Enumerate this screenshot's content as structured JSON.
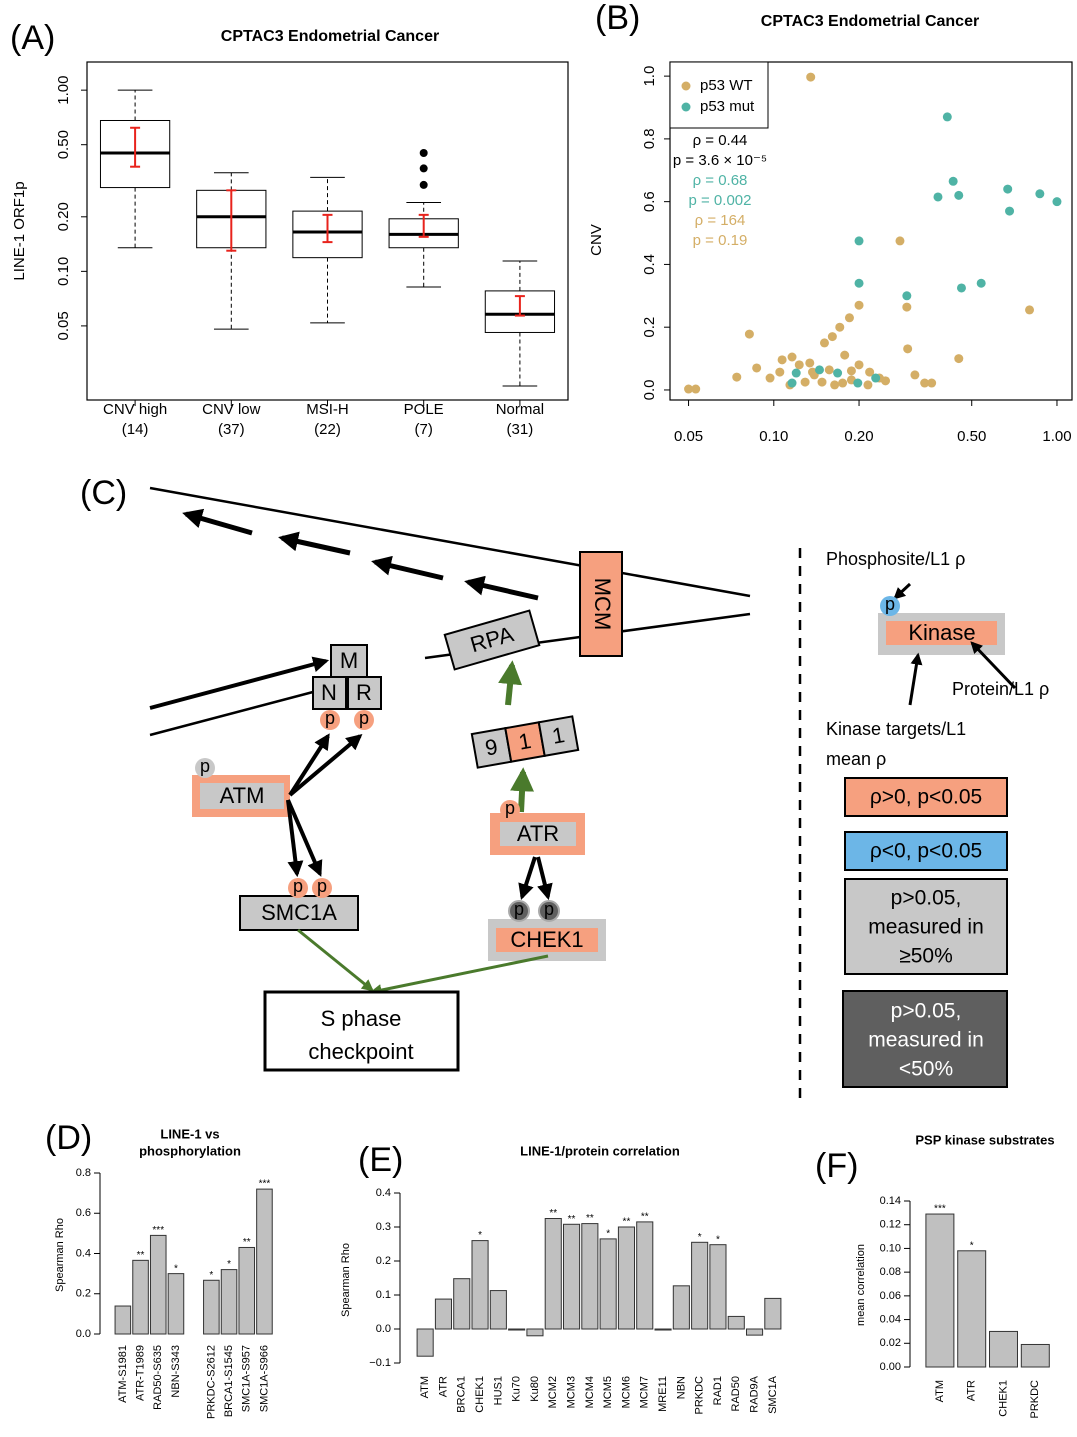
{
  "panel_labels": [
    "(A)",
    "(B)",
    "(C)",
    "(D)",
    "(E)",
    "(F)"
  ],
  "chart_data": [
    {
      "type": "box",
      "title": "CPTAC3 Endometrial Cancer",
      "y_label": "LINE-1 ORF1p",
      "categories": [
        "CNV high",
        "CNV low",
        "MSI-H",
        "POLE",
        "Normal"
      ],
      "counts": [
        "(14)",
        "(37)",
        "(22)",
        "(7)",
        "(31)"
      ],
      "whisker_low": [
        0.135,
        0.048,
        0.052,
        0.082,
        0.0233
      ],
      "q1": [
        0.29,
        0.135,
        0.119,
        0.135,
        0.046
      ],
      "median": [
        0.45,
        0.2,
        0.165,
        0.16,
        0.058
      ],
      "q3": [
        0.68,
        0.28,
        0.215,
        0.195,
        0.078
      ],
      "whisker_high": [
        1.0,
        0.35,
        0.33,
        0.24,
        0.114
      ],
      "outliers": [
        [],
        [],
        [],
        [
          0.3,
          0.37,
          0.45
        ],
        []
      ],
      "ci_low": [
        0.378,
        0.13,
        0.145,
        0.155,
        0.057
      ],
      "ci_high": [
        0.62,
        0.28,
        0.205,
        0.205,
        0.073
      ],
      "box_color": "#ffffff",
      "ci_color": "#e8231c",
      "ylog": true,
      "ylim": [
        0.0195,
        1.43
      ],
      "yticks": [
        0.05,
        {
          "value": 0.1,
          "label": "0.10"
        },
        {
          "value": 0.2,
          "label": "0.20"
        },
        {
          "value": 0.5,
          "label": "0.50"
        },
        {
          "value": 1,
          "label": "1.00"
        }
      ]
    },
    {
      "type": "scatter",
      "title": "CPTAC3 Endometrial Cancer",
      "y_label": "CNV",
      "xlog": true,
      "xlim": [
        0.043,
        1.13
      ],
      "ylim": [
        -0.032,
        1.045
      ],
      "xticks": [
        0.05,
        {
          "value": 0.1,
          "label": "0.10"
        },
        {
          "value": 0.2,
          "label": "0.20"
        },
        {
          "value": 0.5,
          "label": "0.50"
        },
        {
          "value": 1,
          "label": "1.00"
        }
      ],
      "yticks": [
        {
          "value": 0,
          "label": "0.0"
        },
        0.2,
        0.4,
        0.6,
        0.8,
        {
          "value": 1,
          "label": "1.0"
        }
      ],
      "legend": "top-left",
      "series": [
        {
          "name": "p53 WT",
          "color": "#d4ae66",
          "x": [
            0.135,
            0.279,
            0.295,
            0.8,
            0.45,
            0.2,
            0.185,
            0.171,
            0.161,
            0.151,
            0.134,
            0.082,
            0.074,
            0.05,
            0.053,
            0.097,
            0.087,
            0.107,
            0.123,
            0.139,
            0.157,
            0.178,
            0.188,
            0.218,
            0.236,
            0.2,
            0.297,
            0.315,
            0.341,
            0.361,
            0.148,
            0.129,
            0.114,
            0.175,
            0.215,
            0.164,
            0.188,
            0.105,
            0.116,
            0.137,
            0.248
          ],
          "values": [
            0.997,
            0.475,
            0.264,
            0.255,
            0.1,
            0.27,
            0.23,
            0.2,
            0.17,
            0.15,
            0.086,
            0.178,
            0.041,
            0.003,
            0.003,
            0.038,
            0.07,
            0.096,
            0.08,
            0.048,
            0.064,
            0.111,
            0.032,
            0.057,
            0.038,
            0.08,
            0.131,
            0.048,
            0.022,
            0.022,
            0.025,
            0.025,
            0.016,
            0.022,
            0.016,
            0.016,
            0.061,
            0.057,
            0.105,
            0.057,
            0.029
          ]
        },
        {
          "name": "p53 mut",
          "color": "#4fb3a5",
          "x": [
            0.41,
            0.43,
            0.38,
            0.45,
            0.67,
            0.87,
            0.68,
            1.0,
            0.2,
            0.54,
            0.46,
            0.2,
            0.295,
            0.145,
            0.12,
            0.116,
            0.168,
            0.198,
            0.229
          ],
          "values": [
            0.87,
            0.665,
            0.615,
            0.62,
            0.64,
            0.625,
            0.57,
            0.6,
            0.475,
            0.34,
            0.325,
            0.34,
            0.3,
            0.064,
            0.054,
            0.022,
            0.054,
            0.022,
            0.038
          ]
        }
      ],
      "annotations": [
        {
          "text": "ρ = 0.44",
          "color": "#000000"
        },
        {
          "text": "p = 3.6 × 10⁻⁵",
          "color": "#000000"
        },
        {
          "text": "ρ = 0.68",
          "color": "#4fb3a5"
        },
        {
          "text": "p = 0.002",
          "color": "#4fb3a5"
        },
        {
          "text": "ρ = 164",
          "color": "#d4ae66"
        },
        {
          "text": "p = 0.19",
          "color": "#d4ae66"
        }
      ]
    },
    {
      "type": "bar",
      "title": [
        "LINE-1 vs",
        "phosphorylation"
      ],
      "y_label": "Spearman Rho",
      "categories": [
        "ATM-S1981",
        "ATR-T1989",
        "RAD50-S635",
        "NBN-S343",
        "PRKDC-S2612",
        "BRCA1-S1545",
        "SMC1A-S957",
        "SMC1A-S966"
      ],
      "values": [
        0.139,
        0.366,
        0.49,
        0.3,
        0.267,
        0.32,
        0.43,
        0.72
      ],
      "significance": [
        null,
        "**",
        "***",
        "*",
        "*",
        "*",
        "**",
        "***"
      ],
      "color": "#c0c0c0",
      "ylim": [
        0,
        0.8
      ],
      "yticks": [
        {
          "value": 0,
          "label": "0.0"
        },
        0.2,
        0.4,
        0.6,
        0.8
      ]
    },
    {
      "type": "bar",
      "title": [
        "LINE-1/protein correlation"
      ],
      "y_label": "Spearman Rho",
      "categories": [
        "ATM",
        "ATR",
        "BRCA1",
        "CHEK1",
        "HUS1",
        "Ku70",
        "Ku80",
        "MCM2",
        "MCM3",
        "MCM4",
        "MCM5",
        "MCM6",
        "MCM7",
        "MRE11",
        "NBN",
        "PRKDC",
        "RAD1",
        "RAD50",
        "RAD9A",
        "SMC1A"
      ],
      "values": [
        -0.08,
        0.088,
        0.148,
        0.26,
        0.113,
        -0.003,
        -0.02,
        0.325,
        0.308,
        0.31,
        0.265,
        0.3,
        0.315,
        -0.003,
        0.127,
        0.255,
        0.248,
        0.037,
        -0.018,
        0.09
      ],
      "significance": [
        null,
        null,
        null,
        "*",
        null,
        null,
        null,
        "**",
        "**",
        "**",
        "*",
        "**",
        "**",
        null,
        null,
        "*",
        "*",
        null,
        null,
        null
      ],
      "color": "#c0c0c0",
      "ylim": [
        -0.1,
        0.4
      ],
      "yticks": [
        {
          "value": -0.1,
          "label": "−0.1"
        },
        {
          "value": 0,
          "label": "0.0"
        },
        0.1,
        0.2,
        0.3,
        0.4
      ]
    },
    {
      "type": "bar",
      "title": [
        "PSP kinase substrates"
      ],
      "y_label": "mean correlation",
      "categories": [
        "ATM",
        "ATR",
        "CHEK1",
        "PRKDC"
      ],
      "values": [
        0.129,
        0.098,
        0.03,
        0.019
      ],
      "significance": [
        "***",
        "*",
        null,
        null
      ],
      "color": "#c0c0c0",
      "ylim": [
        0,
        0.14
      ],
      "yticks": [
        {
          "value": 0,
          "label": "0.00"
        },
        {
          "value": 0.02,
          "label": "0.02"
        },
        {
          "value": 0.04,
          "label": "0.04"
        },
        {
          "value": 0.06,
          "label": "0.06"
        },
        {
          "value": 0.08,
          "label": "0.08"
        },
        {
          "value": 0.1,
          "label": "0.10"
        },
        {
          "value": 0.12,
          "label": "0.12"
        },
        {
          "value": 0.14,
          "label": "0.14"
        }
      ]
    }
  ],
  "diagram": {
    "labels": {
      "mcm": "MCM",
      "rpa": "RPA",
      "m": "M",
      "n": "N",
      "r": "R",
      "atm": "ATM",
      "atr": "ATR",
      "smc1a": "SMC1A",
      "chek1": "CHEK1",
      "nine": "9",
      "one_a": "1",
      "one_b": "1",
      "phospho": "p",
      "checkpoint": [
        "S phase",
        "checkpoint"
      ]
    },
    "legend": {
      "phosphosite": "Phosphosite/L1 ρ",
      "kinase": "Kinase",
      "protein": "Protein/L1 ρ",
      "targets": [
        "Kinase targets/L1",
        "mean ρ"
      ],
      "positive": "ρ>0, p<0.05",
      "negative": "ρ<0, p<0.05",
      "measured_high": [
        "p>0.05,",
        "measured in",
        "≥50%"
      ],
      "measured_low": [
        "p>0.05,",
        "measured in",
        "<50%"
      ]
    }
  }
}
